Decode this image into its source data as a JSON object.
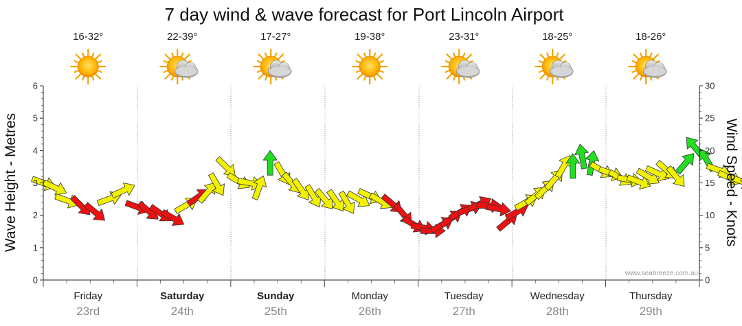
{
  "chart_data": {
    "type": "scatter",
    "title": "7 day wind & wave forecast for Port Lincoln Airport",
    "ylabel_left": "Wave Height - Metres",
    "ylabel_right": "Wind Speed - Knots",
    "left_axis": {
      "min": 0,
      "max": 6,
      "ticks": [
        "0",
        "1",
        "2",
        "3",
        "4",
        "5",
        "6"
      ]
    },
    "right_axis": {
      "min": 0,
      "max": 30,
      "ticks": [
        "0",
        "5",
        "10",
        "15",
        "20",
        "25",
        "30"
      ]
    },
    "watermark": "www.seabreeze.com.au",
    "days": [
      {
        "name": "Friday",
        "date": "23rd",
        "temp": "16-32°",
        "weather": "sunny",
        "bold": false
      },
      {
        "name": "Saturday",
        "date": "24th",
        "temp": "22-39°",
        "weather": "partly-cloudy",
        "bold": true
      },
      {
        "name": "Sunday",
        "date": "25th",
        "temp": "17-27°",
        "weather": "partly-cloudy",
        "bold": true
      },
      {
        "name": "Monday",
        "date": "26th",
        "temp": "19-38°",
        "weather": "sunny",
        "bold": false
      },
      {
        "name": "Tuesday",
        "date": "27th",
        "temp": "23-31°",
        "weather": "partly-cloudy",
        "bold": false
      },
      {
        "name": "Wednesday",
        "date": "28th",
        "temp": "18-25°",
        "weather": "partly-cloudy",
        "bold": false
      },
      {
        "name": "Thursday",
        "date": "29th",
        "temp": "18-26°",
        "weather": "partly-cloudy",
        "bold": false
      }
    ],
    "wind_series": {
      "name": "Wind speed (knots) with direction",
      "colors": {
        "yellow": "#f2f200",
        "red": "#ee1111",
        "green": "#22dd22"
      },
      "points": [
        {
          "t": 0.0,
          "knots": 15.0,
          "dir": 110,
          "c": "yellow"
        },
        {
          "t": 0.12,
          "knots": 14.3,
          "dir": 115,
          "c": "yellow"
        },
        {
          "t": 0.25,
          "knots": 12.3,
          "dir": 110,
          "c": "yellow"
        },
        {
          "t": 0.4,
          "knots": 11.5,
          "dir": 135,
          "c": "red"
        },
        {
          "t": 0.55,
          "knots": 10.5,
          "dir": 130,
          "c": "red"
        },
        {
          "t": 0.7,
          "knots": 12.5,
          "dir": 70,
          "c": "yellow"
        },
        {
          "t": 0.85,
          "knots": 13.8,
          "dir": 65,
          "c": "yellow"
        },
        {
          "t": 1.0,
          "knots": 11.3,
          "dir": 110,
          "c": "red"
        },
        {
          "t": 1.12,
          "knots": 10.7,
          "dir": 130,
          "c": "red"
        },
        {
          "t": 1.25,
          "knots": 10.3,
          "dir": 125,
          "c": "red"
        },
        {
          "t": 1.38,
          "knots": 9.6,
          "dir": 120,
          "c": "red"
        },
        {
          "t": 1.52,
          "knots": 11.5,
          "dir": 60,
          "c": "yellow"
        },
        {
          "t": 1.65,
          "knots": 12.8,
          "dir": 55,
          "c": "red"
        },
        {
          "t": 1.75,
          "knots": 13.5,
          "dir": 40,
          "c": "yellow"
        },
        {
          "t": 1.85,
          "knots": 14.8,
          "dir": 150,
          "c": "yellow"
        },
        {
          "t": 1.95,
          "knots": 17.5,
          "dir": 135,
          "c": "yellow"
        },
        {
          "t": 2.08,
          "knots": 15.3,
          "dir": 120,
          "c": "yellow"
        },
        {
          "t": 2.2,
          "knots": 15.0,
          "dir": 100,
          "c": "yellow"
        },
        {
          "t": 2.3,
          "knots": 14.2,
          "dir": 20,
          "c": "yellow"
        },
        {
          "t": 2.42,
          "knots": 18.0,
          "dir": 0,
          "c": "green"
        },
        {
          "t": 2.55,
          "knots": 16.5,
          "dir": 150,
          "c": "yellow"
        },
        {
          "t": 2.65,
          "knots": 15.0,
          "dir": 140,
          "c": "yellow"
        },
        {
          "t": 2.75,
          "knots": 14.0,
          "dir": 145,
          "c": "yellow"
        },
        {
          "t": 2.88,
          "knots": 13.0,
          "dir": 150,
          "c": "yellow"
        },
        {
          "t": 3.0,
          "knots": 12.5,
          "dir": 140,
          "c": "yellow"
        },
        {
          "t": 3.12,
          "knots": 12.3,
          "dir": 145,
          "c": "yellow"
        },
        {
          "t": 3.24,
          "knots": 12.0,
          "dir": 150,
          "c": "yellow"
        },
        {
          "t": 3.36,
          "knots": 12.5,
          "dir": 120,
          "c": "yellow"
        },
        {
          "t": 3.48,
          "knots": 13.0,
          "dir": 115,
          "c": "yellow"
        },
        {
          "t": 3.6,
          "knots": 12.2,
          "dir": 120,
          "c": "yellow"
        },
        {
          "t": 3.72,
          "knots": 11.8,
          "dir": 130,
          "c": "red"
        },
        {
          "t": 3.84,
          "knots": 10.2,
          "dir": 140,
          "c": "red"
        },
        {
          "t": 3.95,
          "knots": 8.6,
          "dir": 120,
          "c": "red"
        },
        {
          "t": 4.05,
          "knots": 8.1,
          "dir": 100,
          "c": "red"
        },
        {
          "t": 4.15,
          "knots": 7.6,
          "dir": 90,
          "c": "red"
        },
        {
          "t": 4.25,
          "knots": 8.5,
          "dir": 60,
          "c": "red"
        },
        {
          "t": 4.35,
          "knots": 9.5,
          "dir": 55,
          "c": "red"
        },
        {
          "t": 4.45,
          "knots": 10.5,
          "dir": 60,
          "c": "red"
        },
        {
          "t": 4.55,
          "knots": 11.0,
          "dir": 70,
          "c": "red"
        },
        {
          "t": 4.65,
          "knots": 11.7,
          "dir": 65,
          "c": "red"
        },
        {
          "t": 4.75,
          "knots": 11.5,
          "dir": 90,
          "c": "red"
        },
        {
          "t": 4.85,
          "knots": 11.0,
          "dir": 100,
          "c": "red"
        },
        {
          "t": 4.95,
          "knots": 9.0,
          "dir": 50,
          "c": "red"
        },
        {
          "t": 5.05,
          "knots": 10.5,
          "dir": 60,
          "c": "red"
        },
        {
          "t": 5.15,
          "knots": 12.0,
          "dir": 60,
          "c": "yellow"
        },
        {
          "t": 5.25,
          "knots": 13.0,
          "dir": 50,
          "c": "yellow"
        },
        {
          "t": 5.35,
          "knots": 14.0,
          "dir": 45,
          "c": "yellow"
        },
        {
          "t": 5.45,
          "knots": 15.5,
          "dir": 40,
          "c": "yellow"
        },
        {
          "t": 5.55,
          "knots": 17.5,
          "dir": 30,
          "c": "yellow"
        },
        {
          "t": 5.65,
          "knots": 17.5,
          "dir": 0,
          "c": "green"
        },
        {
          "t": 5.75,
          "knots": 19.0,
          "dir": 350,
          "c": "green"
        },
        {
          "t": 5.85,
          "knots": 18.0,
          "dir": 10,
          "c": "green"
        },
        {
          "t": 5.95,
          "knots": 17.0,
          "dir": 120,
          "c": "yellow"
        },
        {
          "t": 6.05,
          "knots": 16.5,
          "dir": 110,
          "c": "yellow"
        },
        {
          "t": 6.15,
          "knots": 15.8,
          "dir": 120,
          "c": "yellow"
        },
        {
          "t": 6.25,
          "knots": 15.5,
          "dir": 100,
          "c": "yellow"
        },
        {
          "t": 6.35,
          "knots": 15.2,
          "dir": 110,
          "c": "yellow"
        },
        {
          "t": 6.45,
          "knots": 16.0,
          "dir": 120,
          "c": "yellow"
        },
        {
          "t": 6.55,
          "knots": 16.5,
          "dir": 115,
          "c": "yellow"
        },
        {
          "t": 6.65,
          "knots": 17.0,
          "dir": 130,
          "c": "yellow"
        },
        {
          "t": 6.75,
          "knots": 16.0,
          "dir": 140,
          "c": "yellow"
        },
        {
          "t": 6.85,
          "knots": 18.0,
          "dir": 40,
          "c": "green"
        },
        {
          "t": 6.95,
          "knots": 20.5,
          "dir": 320,
          "c": "green"
        },
        {
          "t": 7.08,
          "knots": 18.5,
          "dir": 330,
          "c": "green"
        },
        {
          "t": 7.2,
          "knots": 17.0,
          "dir": 110,
          "c": "yellow"
        },
        {
          "t": 7.32,
          "knots": 15.8,
          "dir": 115,
          "c": "yellow"
        },
        {
          "t": 7.44,
          "knots": 15.3,
          "dir": 110,
          "c": "yellow"
        },
        {
          "t": 7.56,
          "knots": 14.8,
          "dir": 120,
          "c": "yellow"
        },
        {
          "t": 7.68,
          "knots": 15.5,
          "dir": 110,
          "c": "yellow"
        },
        {
          "t": 7.8,
          "knots": 15.2,
          "dir": 115,
          "c": "yellow"
        },
        {
          "t": 7.92,
          "knots": 15.8,
          "dir": 120,
          "c": "yellow"
        },
        {
          "t": 8.04,
          "knots": 15.0,
          "dir": 110,
          "c": "yellow"
        },
        {
          "t": 8.16,
          "knots": 15.5,
          "dir": 120,
          "c": "yellow"
        },
        {
          "t": 8.28,
          "knots": 16.0,
          "dir": 130,
          "c": "yellow"
        },
        {
          "t": 8.4,
          "knots": 15.5,
          "dir": 120,
          "c": "yellow"
        },
        {
          "t": 8.52,
          "knots": 15.0,
          "dir": 130,
          "c": "yellow"
        },
        {
          "t": 8.64,
          "knots": 13.8,
          "dir": 135,
          "c": "yellow"
        }
      ]
    }
  }
}
